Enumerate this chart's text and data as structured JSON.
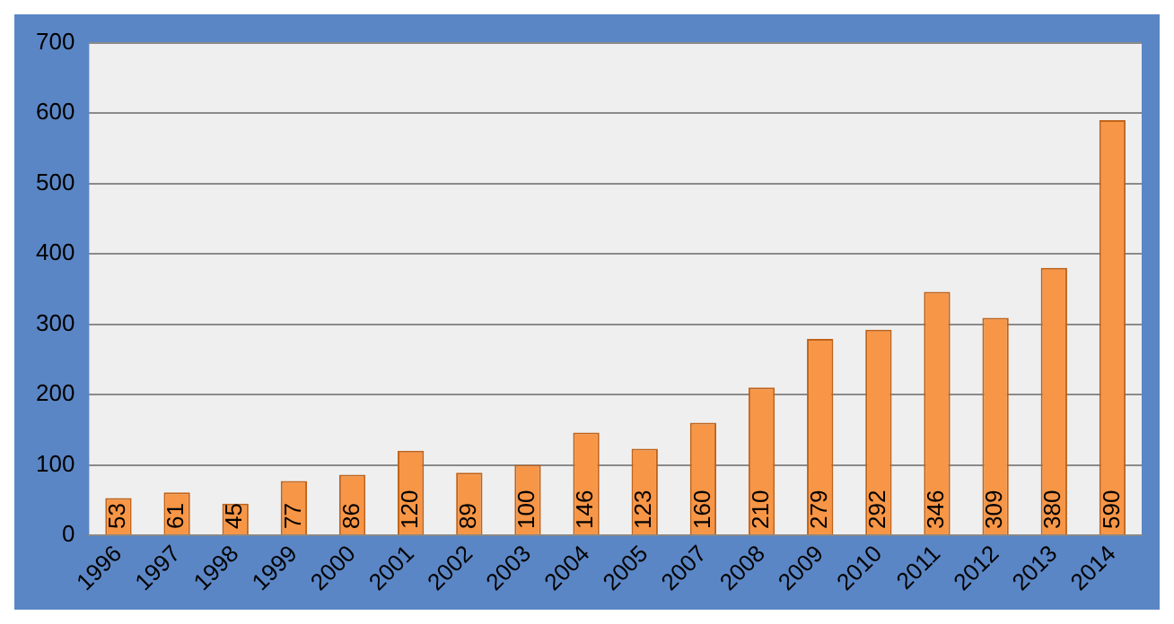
{
  "chart_data": {
    "type": "bar",
    "categories": [
      "1996",
      "1997",
      "1998",
      "1999",
      "2000",
      "2001",
      "2002",
      "2003",
      "2004",
      "2005",
      "2007",
      "2008",
      "2009",
      "2010",
      "2011",
      "2012",
      "2013",
      "2014"
    ],
    "values": [
      53,
      61,
      45,
      77,
      86,
      120,
      89,
      100,
      146,
      123,
      160,
      210,
      279,
      292,
      346,
      309,
      380,
      590
    ],
    "color": "#f79646",
    "ylim": [
      0,
      700
    ],
    "yticks": [
      0,
      100,
      200,
      300,
      400,
      500,
      600,
      700
    ],
    "grid": "y",
    "legend": false,
    "data_labels": true
  }
}
